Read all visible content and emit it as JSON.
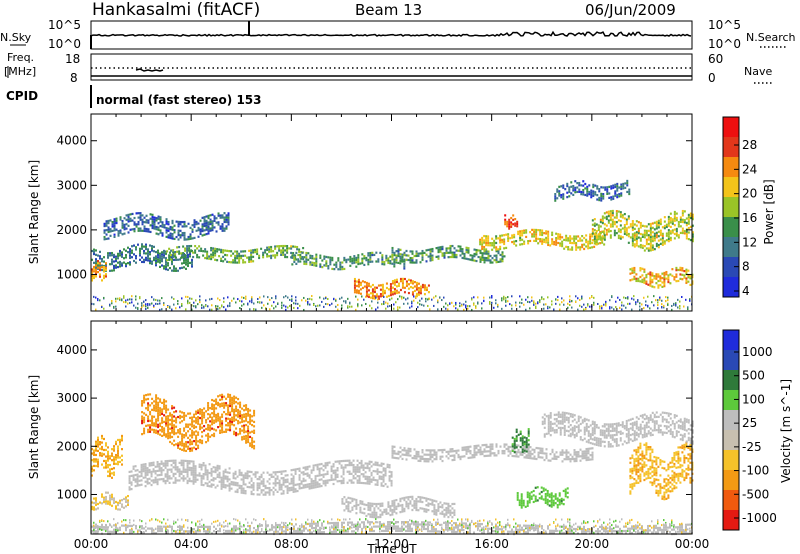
{
  "header": {
    "station": "Hankasalmi (fitACF)",
    "beam": "Beam 13",
    "date": "06/Jun/2009"
  },
  "noise_panel": {
    "left_label": "N.Sky",
    "right_label": "N.Search",
    "ticks_left": [
      "10^5",
      "10^0"
    ],
    "ticks_right": [
      "10^5",
      "10^0"
    ]
  },
  "freq_panel": {
    "left_label_1": "Freq.",
    "left_label_2": "[MHz]",
    "right_label": "Nave",
    "ticks_left": [
      "18",
      "8"
    ],
    "ticks_right": [
      "60",
      "0"
    ]
  },
  "cpid": {
    "label": "CPID",
    "program": "normal (fast stereo) 153"
  },
  "colors": {
    "power_scale": [
      "#1f2bdb",
      "#2a49b5",
      "#3f7a8a",
      "#3a8f4a",
      "#9ac427",
      "#f3c41a",
      "#f58a10",
      "#e2371b",
      "#ee1010"
    ],
    "velocity_scale": [
      "#1f2bdb",
      "#2a49b5",
      "#2f7a3a",
      "#5dc93b",
      "#bdbdbd",
      "#c8c0b0",
      "#f5c22a",
      "#f39a14",
      "#f05a0e",
      "#e51a12"
    ]
  },
  "chart_data": [
    {
      "type": "heatmap",
      "panel": "power",
      "title": "",
      "xlabel": "Time UT",
      "ylabel": "Slant Range [km]",
      "xlim": [
        "00:00",
        "24:00"
      ],
      "ylim": [
        180,
        4600
      ],
      "x_ticks": [
        "00:00",
        "04:00",
        "08:00",
        "12:00",
        "16:00",
        "20:00",
        "00:00"
      ],
      "y_ticks": [
        1000,
        2000,
        3000,
        4000
      ],
      "colorbar": {
        "label": "Power [dB]",
        "range": [
          0,
          30
        ],
        "ticks": [
          "28",
          "24",
          "20",
          "16",
          "12",
          "8",
          "4"
        ]
      },
      "echo_bands": [
        {
          "t_start": 0.0,
          "t_end": 4.0,
          "range_start": 1200,
          "range_end": 1600,
          "level": 8
        },
        {
          "t_start": 0.0,
          "t_end": 0.6,
          "range_start": 950,
          "range_end": 1250,
          "level": 22
        },
        {
          "t_start": 0.5,
          "t_end": 5.5,
          "range_start": 1900,
          "range_end": 2300,
          "level": 6
        },
        {
          "t_start": 3.0,
          "t_end": 8.5,
          "range_start": 1350,
          "range_end": 1600,
          "level": 12
        },
        {
          "t_start": 8.0,
          "t_end": 12.5,
          "range_start": 1200,
          "range_end": 1450,
          "level": 10
        },
        {
          "t_start": 10.5,
          "t_end": 13.5,
          "range_start": 550,
          "range_end": 850,
          "level": 22
        },
        {
          "t_start": 12.0,
          "t_end": 16.5,
          "range_start": 1350,
          "range_end": 1600,
          "level": 10
        },
        {
          "t_start": 15.5,
          "t_end": 20.5,
          "range_start": 1650,
          "range_end": 1950,
          "level": 18
        },
        {
          "t_start": 18.5,
          "t_end": 21.5,
          "range_start": 2750,
          "range_end": 3050,
          "level": 6
        },
        {
          "t_start": 20.0,
          "t_end": 24.0,
          "range_start": 1700,
          "range_end": 2300,
          "level": 16
        },
        {
          "t_start": 21.5,
          "t_end": 24.0,
          "range_start": 800,
          "range_end": 1100,
          "level": 20
        },
        {
          "t_start": 16.5,
          "t_end": 17.0,
          "range_start": 2100,
          "range_end": 2300,
          "level": 26
        }
      ]
    },
    {
      "type": "heatmap",
      "panel": "velocity",
      "title": "",
      "xlabel": "Time UT",
      "ylabel": "Slant Range [km]",
      "xlim": [
        "00:00",
        "24:00"
      ],
      "ylim": [
        180,
        4600
      ],
      "x_ticks": [
        "00:00",
        "04:00",
        "08:00",
        "12:00",
        "16:00",
        "20:00",
        "00:00"
      ],
      "y_ticks": [
        1000,
        2000,
        3000,
        4000
      ],
      "colorbar": {
        "label": "Velocity [m s^-1]",
        "ticks": [
          "1000",
          "500",
          "100",
          "25",
          "-25",
          "-100",
          "-500",
          "-1000"
        ]
      },
      "echo_bands": [
        {
          "t_start": 0.0,
          "t_end": 24.0,
          "range_start": 200,
          "range_end": 400,
          "velocity": 0
        },
        {
          "t_start": 0.0,
          "t_end": 1.5,
          "range_start": 750,
          "range_end": 1000,
          "velocity": -100
        },
        {
          "t_start": 0.0,
          "t_end": 1.2,
          "range_start": 1500,
          "range_end": 2100,
          "velocity": -500
        },
        {
          "t_start": 1.5,
          "t_end": 12.0,
          "range_start": 1100,
          "range_end": 1600,
          "velocity": 0
        },
        {
          "t_start": 2.0,
          "t_end": 6.5,
          "range_start": 2100,
          "range_end": 2900,
          "velocity": -800
        },
        {
          "t_start": 10.0,
          "t_end": 14.5,
          "range_start": 600,
          "range_end": 900,
          "velocity": 0
        },
        {
          "t_start": 12.0,
          "t_end": 20.0,
          "range_start": 1750,
          "range_end": 2000,
          "velocity": 0
        },
        {
          "t_start": 17.0,
          "t_end": 19.0,
          "range_start": 800,
          "range_end": 1100,
          "velocity": 80
        },
        {
          "t_start": 16.8,
          "t_end": 17.5,
          "range_start": 1900,
          "range_end": 2300,
          "velocity": 120
        },
        {
          "t_start": 21.5,
          "t_end": 24.0,
          "range_start": 1100,
          "range_end": 1900,
          "velocity": -450
        },
        {
          "t_start": 18.0,
          "t_end": 24.0,
          "range_start": 2100,
          "range_end": 2600,
          "velocity": 0
        }
      ]
    }
  ]
}
